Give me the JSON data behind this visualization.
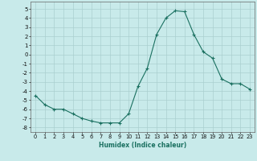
{
  "x": [
    0,
    1,
    2,
    3,
    4,
    5,
    6,
    7,
    8,
    9,
    10,
    11,
    12,
    13,
    14,
    15,
    16,
    17,
    18,
    19,
    20,
    21,
    22,
    23
  ],
  "y": [
    -4.5,
    -5.5,
    -6.0,
    -6.0,
    -6.5,
    -7.0,
    -7.3,
    -7.5,
    -7.5,
    -7.5,
    -6.5,
    -3.5,
    -1.5,
    2.2,
    4.0,
    4.8,
    4.7,
    2.2,
    0.3,
    -0.4,
    -2.7,
    -3.2,
    -3.2,
    -3.8
  ],
  "title": "",
  "xlabel": "Humidex (Indice chaleur)",
  "ylabel": "",
  "xlim": [
    -0.5,
    23.5
  ],
  "ylim": [
    -8.5,
    5.8
  ],
  "yticks": [
    -8,
    -7,
    -6,
    -5,
    -4,
    -3,
    -2,
    -1,
    0,
    1,
    2,
    3,
    4,
    5
  ],
  "xticks": [
    0,
    1,
    2,
    3,
    4,
    5,
    6,
    7,
    8,
    9,
    10,
    11,
    12,
    13,
    14,
    15,
    16,
    17,
    18,
    19,
    20,
    21,
    22,
    23
  ],
  "line_color": "#1a7060",
  "marker": "+",
  "bg_color": "#c8eaea",
  "grid_color": "#aacfcf"
}
